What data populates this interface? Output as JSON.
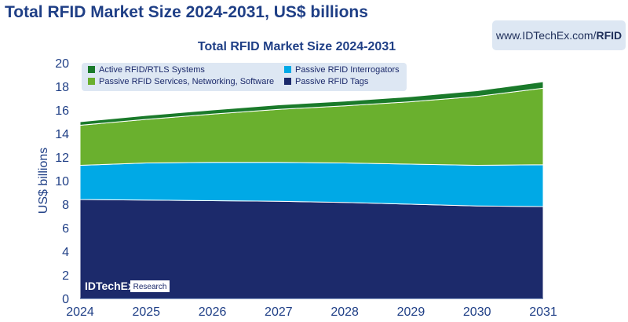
{
  "page": {
    "heading": "Total RFID Market Size 2024-2031, US$ billions",
    "url_prefix": "www.IDTechEx.com/",
    "url_suffix": "RFID"
  },
  "watermark": {
    "brand": "IDTechEx",
    "tag": "Research"
  },
  "colors": {
    "active_rfid": "#1a7a2a",
    "passive_services": "#6ab02e",
    "passive_interrogators": "#00a9e6",
    "passive_tags": "#1c2a6b",
    "heading": "#1f3f86",
    "axis_text": "#1f3f86",
    "legend_bg": "#dde7f3"
  },
  "chart_data": {
    "type": "area",
    "stacked": true,
    "title": "Total RFID Market Size 2024-2031",
    "xlabel": "",
    "ylabel": "US$ billions",
    "categories": [
      "2024",
      "2025",
      "2026",
      "2027",
      "2028",
      "2029",
      "2030",
      "2031"
    ],
    "ylim": [
      0,
      20
    ],
    "yticks": [
      0,
      2,
      4,
      6,
      8,
      10,
      12,
      14,
      16,
      18,
      20
    ],
    "grid": false,
    "legend_position": "top-left",
    "series": [
      {
        "name": "Passive RFID Tags",
        "color": "#1c2a6b",
        "values": [
          8.4,
          8.35,
          8.3,
          8.25,
          8.15,
          8.0,
          7.85,
          7.8
        ]
      },
      {
        "name": "Passive RFID Interrogators",
        "color": "#00a9e6",
        "values": [
          2.9,
          3.15,
          3.25,
          3.3,
          3.35,
          3.4,
          3.45,
          3.55
        ]
      },
      {
        "name": "Passive RFID Services, Networking, Software",
        "color": "#6ab02e",
        "values": [
          3.4,
          3.7,
          4.1,
          4.5,
          4.85,
          5.3,
          5.85,
          6.5
        ]
      },
      {
        "name": "Active RFID/RTLS Systems",
        "color": "#1a7a2a",
        "values": [
          0.3,
          0.33,
          0.35,
          0.38,
          0.4,
          0.43,
          0.48,
          0.55
        ]
      }
    ],
    "legend_order": [
      "Active RFID/RTLS Systems",
      "Passive RFID Interrogators",
      "Passive RFID Services, Networking, Software",
      "Passive RFID Tags"
    ]
  }
}
